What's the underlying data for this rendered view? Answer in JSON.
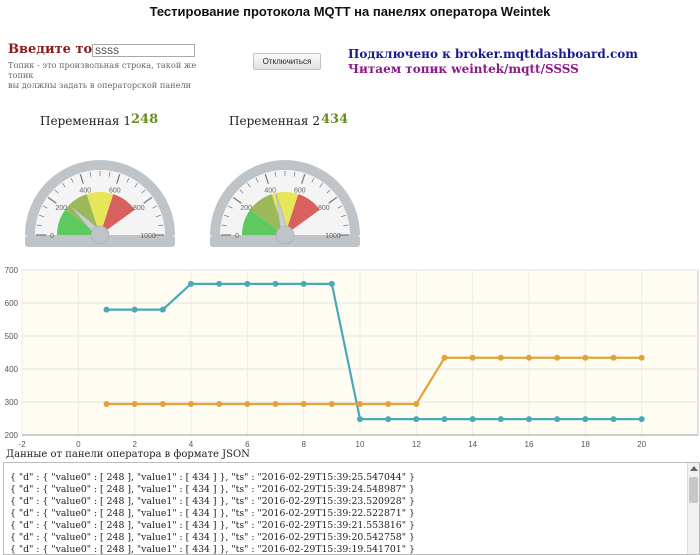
{
  "header": {
    "title": "Тестирование протокола MQTT на панелях оператора Weintek"
  },
  "topic": {
    "label": "Введите топик",
    "value": "SSSS",
    "hint_line1": "Топик - это произвольная строка, такой же топик",
    "hint_line2": "вы должны задать в операторской панели"
  },
  "controls": {
    "disconnect_label": "Отключиться"
  },
  "status": {
    "connected": "Подключено к broker.mqttdashboard.com",
    "reading": "Читаем топик weintek/mqtt/SSSS"
  },
  "variables": [
    {
      "label": "Переменная 1",
      "value": "248",
      "gauge_value": 248
    },
    {
      "label": "Переменная 2",
      "value": "434",
      "gauge_value": 434
    }
  ],
  "gauges": {
    "min": 0,
    "max": 1000,
    "tick_labels": [
      "0",
      "200",
      "400",
      "600",
      "800",
      "1000"
    ],
    "band_colors": {
      "green": "#5ec95e",
      "olive": "#9bb85a",
      "yellow": "#e6e65a",
      "red": "#d8605e"
    }
  },
  "chart_data": {
    "type": "line",
    "xlim": [
      -2,
      22
    ],
    "ylim": [
      200,
      700
    ],
    "x_ticks": [
      "-2",
      "0",
      "2",
      "4",
      "6",
      "8",
      "10",
      "12",
      "14",
      "16",
      "18",
      "20"
    ],
    "y_ticks": [
      "200",
      "300",
      "400",
      "500",
      "600",
      "700"
    ],
    "grid": true,
    "x": [
      1,
      2,
      3,
      4,
      5,
      6,
      7,
      8,
      9,
      10,
      11,
      12,
      13,
      14,
      15,
      16,
      17,
      18,
      19,
      20
    ],
    "series": [
      {
        "color": "#4aa8b8",
        "values": [
          580,
          580,
          580,
          658,
          658,
          658,
          658,
          658,
          658,
          248,
          248,
          248,
          248,
          248,
          248,
          248,
          248,
          248,
          248,
          248
        ]
      },
      {
        "color": "#e3a33a",
        "values": [
          294,
          294,
          294,
          294,
          294,
          294,
          294,
          294,
          294,
          294,
          294,
          294,
          434,
          434,
          434,
          434,
          434,
          434,
          434,
          434
        ]
      }
    ]
  },
  "json_panel": {
    "title": "Данные от панели оператора в формате JSON",
    "lines": [
      "{ \"d\" : { \"value0\" : [ 248 ], \"value1\" : [ 434 ] }, \"ts\" : \"2016-02-29T15:39:25.547044\" }",
      "{ \"d\" : { \"value0\" : [ 248 ], \"value1\" : [ 434 ] }, \"ts\" : \"2016-02-29T15:39:24.548987\" }",
      "{ \"d\" : { \"value0\" : [ 248 ], \"value1\" : [ 434 ] }, \"ts\" : \"2016-02-29T15:39:23.520928\" }",
      "{ \"d\" : { \"value0\" : [ 248 ], \"value1\" : [ 434 ] }, \"ts\" : \"2016-02-29T15:39:22.522871\" }",
      "{ \"d\" : { \"value0\" : [ 248 ], \"value1\" : [ 434 ] }, \"ts\" : \"2016-02-29T15:39:21.553816\" }",
      "{ \"d\" : { \"value0\" : [ 248 ], \"value1\" : [ 434 ] }, \"ts\" : \"2016-02-29T15:39:20.542758\" }",
      "{ \"d\" : { \"value0\" : [ 248 ], \"value1\" : [ 434 ] }, \"ts\" : \"2016-02-29T15:39:19.541701\" }"
    ]
  }
}
